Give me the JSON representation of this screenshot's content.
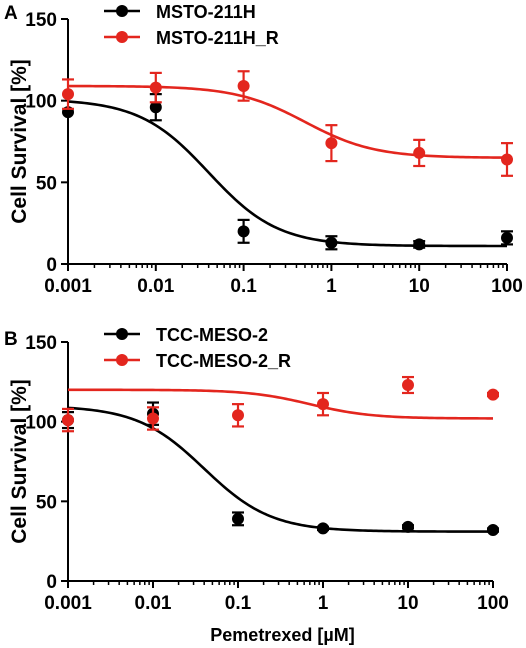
{
  "colors": {
    "black": "#000000",
    "red": "#e3261e"
  },
  "chart_data": [
    {
      "panel": "A",
      "type": "scatter",
      "xscale": "log",
      "xlim": [
        0.001,
        100
      ],
      "ylim": [
        0,
        150
      ],
      "xticks": [
        "0.001",
        "0.01",
        "0.1",
        "1",
        "10",
        "100"
      ],
      "yticks": [
        "0",
        "50",
        "100",
        "150"
      ],
      "ylabel": "Cell Survival [%]",
      "xlabel": "",
      "legend_position": "top-left",
      "series": [
        {
          "name": "MSTO-211H",
          "color": "#000000",
          "x": [
            0.001,
            0.01,
            0.1,
            1,
            10,
            100
          ],
          "y": [
            93,
            96,
            20,
            13,
            12,
            16
          ],
          "error": [
            0,
            8,
            7,
            4,
            2,
            4
          ],
          "fit": {
            "top": 101,
            "bottom": 11,
            "ec50": 0.04,
            "hill": 1.1
          }
        },
        {
          "name": "MSTO-211H_R",
          "color": "#e3261e",
          "x": [
            0.001,
            0.01,
            0.1,
            1,
            10,
            100
          ],
          "y": [
            104,
            108,
            109,
            74,
            68,
            64
          ],
          "error": [
            9,
            9,
            9,
            11,
            8,
            10
          ],
          "fit": {
            "top": 109,
            "bottom": 65,
            "ec50": 0.5,
            "hill": 1.1
          }
        }
      ]
    },
    {
      "panel": "B",
      "type": "scatter",
      "xscale": "log",
      "xlim": [
        0.001,
        100
      ],
      "ylim": [
        0,
        150
      ],
      "xticks": [
        "0.001",
        "0.01",
        "0.1",
        "1",
        "10",
        "100"
      ],
      "yticks": [
        "0",
        "50",
        "100",
        "150"
      ],
      "ylabel": "Cell Survival [%]",
      "xlabel": "Pemetrexed [µM]",
      "legend_position": "top-left",
      "series": [
        {
          "name": "TCC-MESO-2",
          "color": "#000000",
          "x": [
            0.001,
            0.01,
            0.1,
            1,
            10,
            100
          ],
          "y": [
            101,
            105,
            39,
            33,
            34,
            32
          ],
          "error": [
            5,
            7,
            4,
            1,
            1,
            1
          ],
          "fit": {
            "top": 110,
            "bottom": 31,
            "ec50": 0.04,
            "hill": 1.1
          }
        },
        {
          "name": "TCC-MESO-2_R",
          "color": "#e3261e",
          "x": [
            0.001,
            0.01,
            0.1,
            1,
            10,
            100
          ],
          "y": [
            101,
            102,
            104,
            111,
            123,
            117
          ],
          "error": [
            7,
            7,
            7,
            7,
            5,
            1
          ],
          "fit": {
            "top": 120,
            "bottom": 102,
            "ec50": 0.7,
            "hill": 1.2
          }
        }
      ]
    }
  ]
}
